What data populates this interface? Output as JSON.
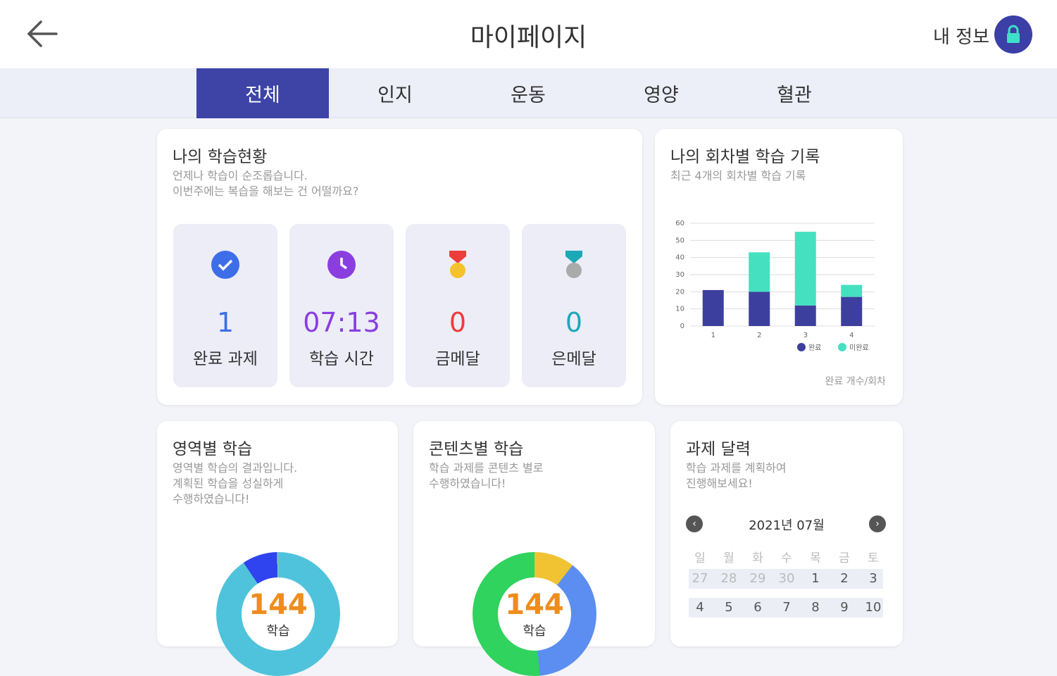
{
  "header": {
    "title": "마이페이지",
    "my_info": "내 정보"
  },
  "tabs": [
    {
      "label": "전체",
      "active": true
    },
    {
      "label": "인지"
    },
    {
      "label": "운동"
    },
    {
      "label": "영양"
    },
    {
      "label": "혈관"
    }
  ],
  "status_card": {
    "title": "나의 학습현황",
    "subtitle": "언제나 학습이 순조롭습니다.\n이번주에는 복습을 해보는 건 어떨까요?",
    "tiles": [
      {
        "icon": "check-circle-icon",
        "value": "1",
        "label": "완료 과제",
        "color": "#3d6ee8"
      },
      {
        "icon": "clock-icon",
        "value": "07:13",
        "label": "학습 시간",
        "color": "#8a3ee0"
      },
      {
        "icon": "gold-medal-icon",
        "value": "0",
        "label": "금메달",
        "color": "#ee3b3b"
      },
      {
        "icon": "silver-medal-icon",
        "value": "0",
        "label": "은메달",
        "color": "#1ba9b8"
      }
    ]
  },
  "history_card": {
    "title": "나의 회차별 학습 기록",
    "subtitle": "최근 4개의 회차별 학습 기록",
    "footer": "완료 개수/회차"
  },
  "chart_data": {
    "type": "bar",
    "stacked": true,
    "categories": [
      "1",
      "2",
      "3",
      "4"
    ],
    "series": [
      {
        "name": "완료",
        "values": [
          21,
          20,
          12,
          17
        ],
        "color": "#3d3f9e"
      },
      {
        "name": "미완료",
        "values": [
          0,
          23,
          43,
          7
        ],
        "color": "#44e0c0"
      }
    ],
    "ylim": [
      0,
      60
    ],
    "yticks": [
      0,
      10,
      20,
      30,
      40,
      50,
      60
    ],
    "grid": true,
    "legend": "bottom-right"
  },
  "area_card": {
    "title": "영역별 학습",
    "subtitle": "영역별 학습의 결과입니다.\n계획된 학습을 성실하게\n수행하였습니다!",
    "total": "144",
    "unit": "학습"
  },
  "content_card": {
    "title": "콘텐츠별 학습",
    "subtitle": "학습 과제를 콘텐츠 별로\n수행하였습니다!",
    "total": "144",
    "unit": "학습"
  },
  "calendar_card": {
    "title": "과제 달력",
    "subtitle": "학습 과제를 계획하여\n진행해보세요!",
    "month": "2021년 07월",
    "weekdays": [
      "일",
      "월",
      "화",
      "수",
      "목",
      "금",
      "토"
    ],
    "weeks": [
      [
        "27",
        "28",
        "29",
        "30",
        "1",
        "2",
        "3"
      ],
      [
        "4",
        "5",
        "6",
        "7",
        "8",
        "9",
        "10"
      ]
    ]
  }
}
